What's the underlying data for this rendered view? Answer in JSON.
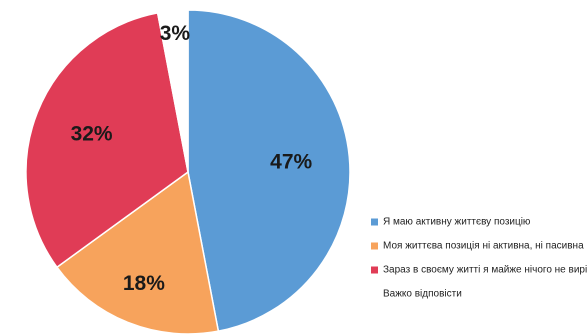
{
  "chart_data": {
    "type": "pie",
    "title": "",
    "start_angle_deg": 0,
    "direction": "clockwise",
    "legend_position": "right",
    "slices": [
      {
        "label": "Я маю активну життєву позицію",
        "value": 47,
        "display": "47%",
        "color": "#5b9bd5"
      },
      {
        "label": "Моя життєва позиція ні активна, ні пасивна",
        "value": 18,
        "display": "18%",
        "color": "#f7a35c"
      },
      {
        "label": "Зараз в своєму житті я майже нічого не вирішую",
        "value": 32,
        "display": "32%",
        "color": "#e03c56"
      },
      {
        "label": "Важко відповісти",
        "value": 3,
        "display": "3%",
        "color": "#ffffff"
      }
    ]
  }
}
